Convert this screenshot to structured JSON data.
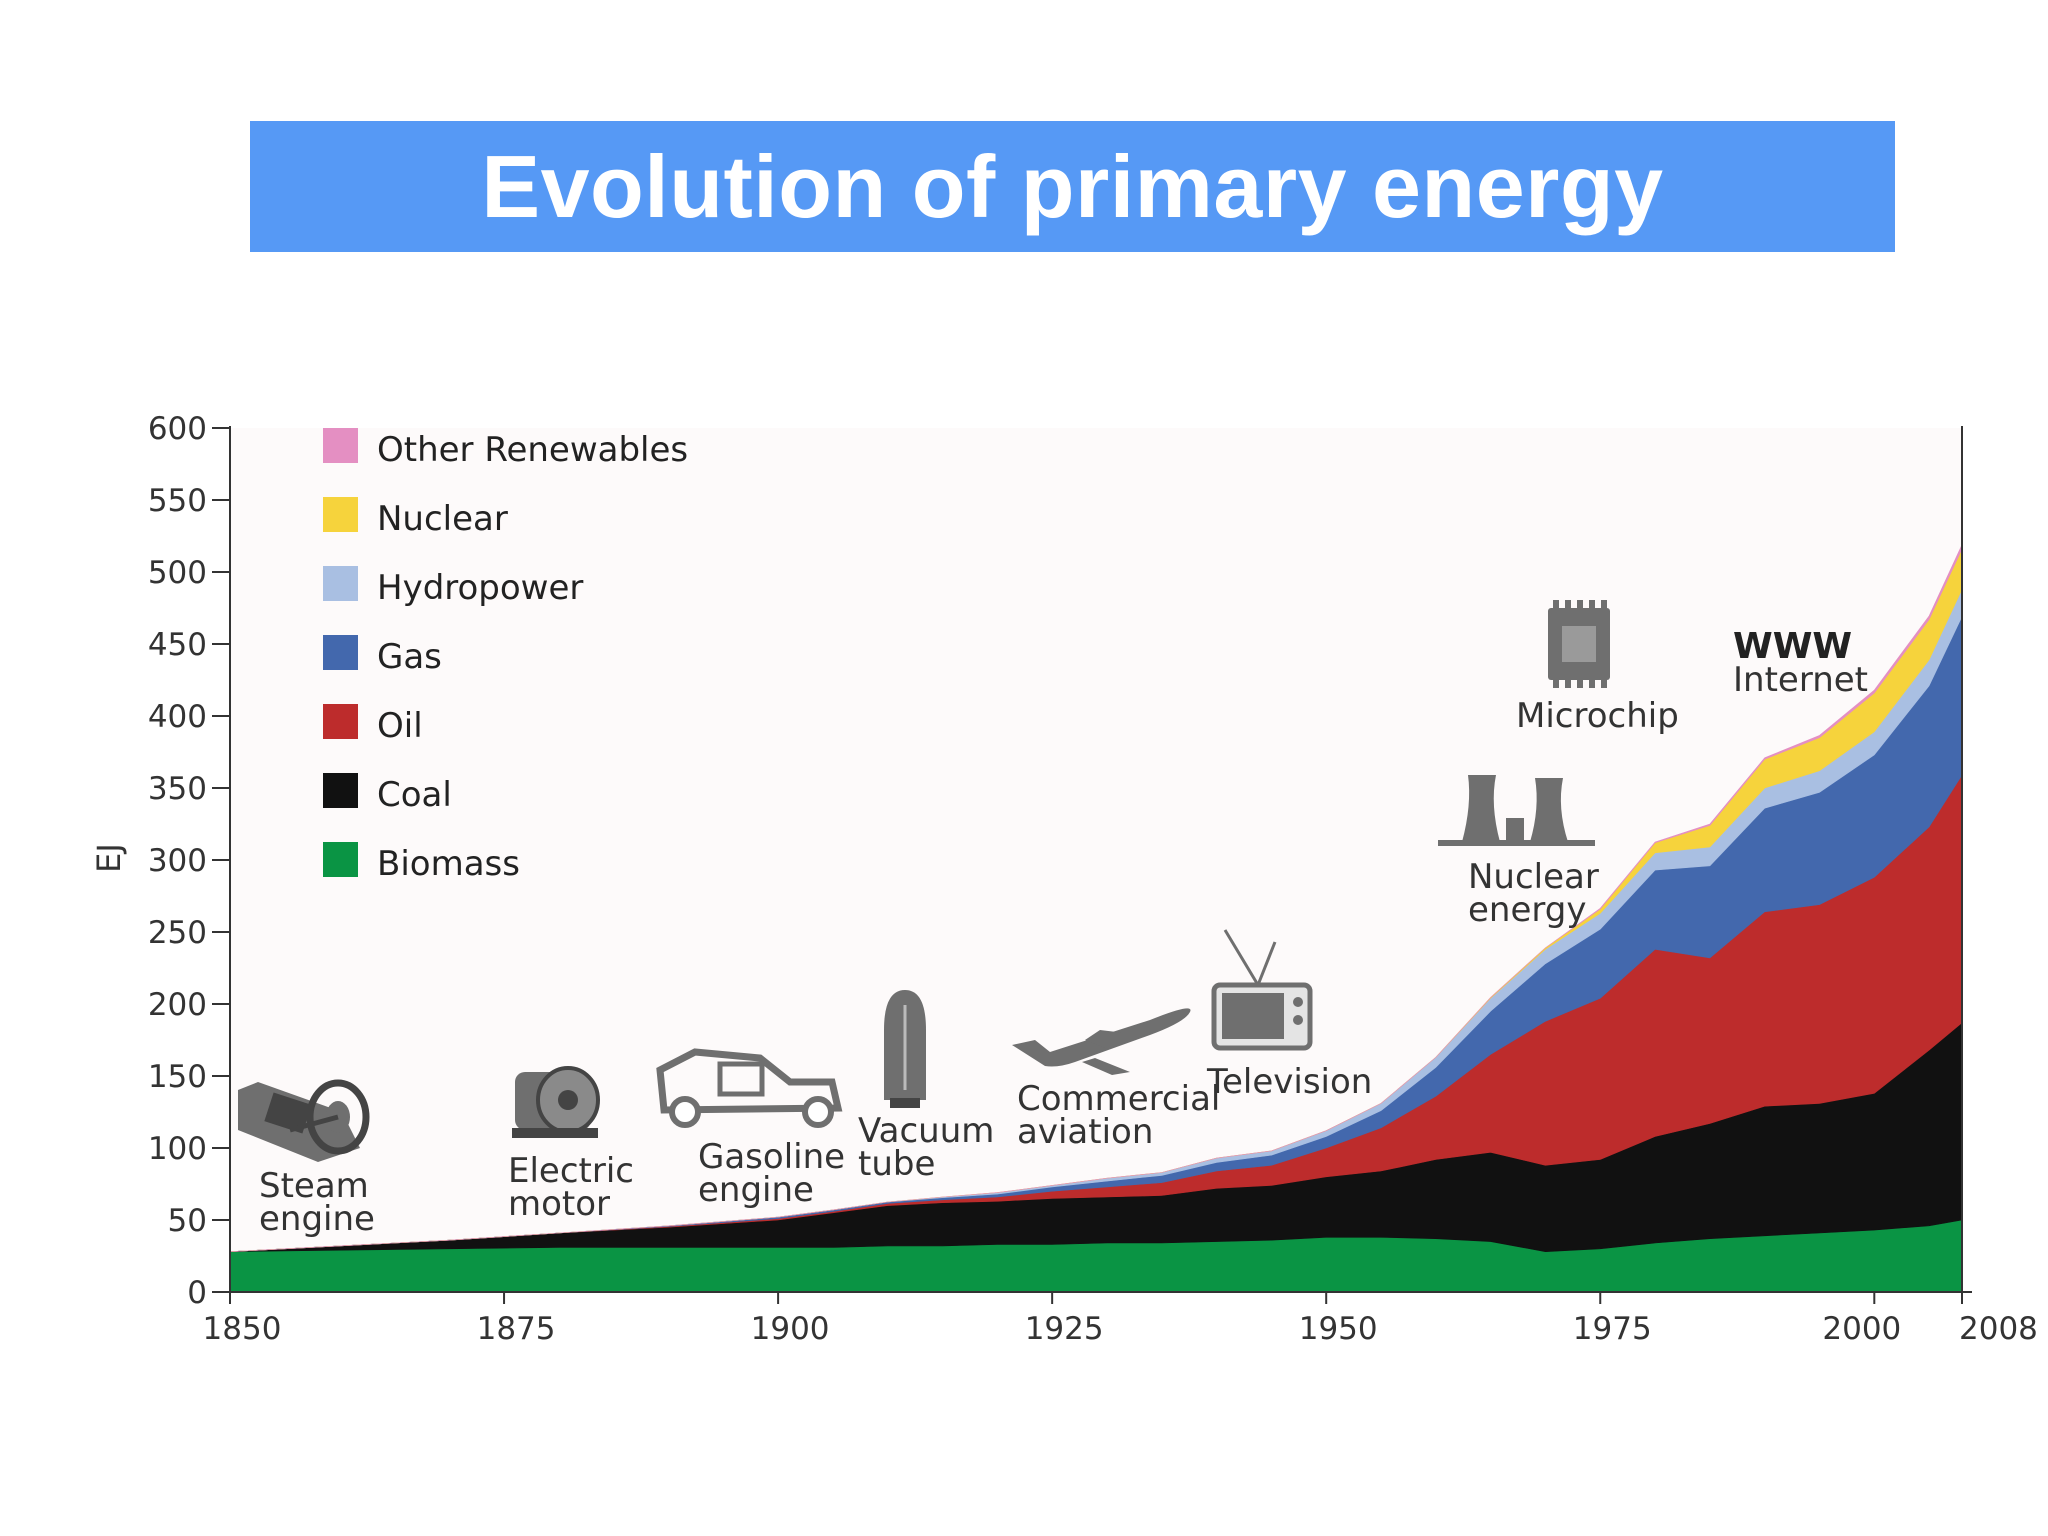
{
  "title": "Evolution of primary energy",
  "chart_data": {
    "type": "area",
    "stacked": true,
    "ylabel": "EJ",
    "xlabel": "",
    "ylim": [
      0,
      600
    ],
    "y_ticks": [
      0,
      50,
      100,
      150,
      200,
      250,
      300,
      350,
      400,
      450,
      500,
      550,
      600
    ],
    "x_ticks": [
      1850,
      1875,
      1900,
      1925,
      1950,
      1975,
      2000,
      2008
    ],
    "xlim": [
      1850,
      2008
    ],
    "legend_position": "top-left",
    "x": [
      1850,
      1860,
      1870,
      1880,
      1890,
      1900,
      1905,
      1910,
      1915,
      1920,
      1925,
      1930,
      1935,
      1940,
      1945,
      1950,
      1955,
      1960,
      1965,
      1970,
      1975,
      1980,
      1985,
      1990,
      1995,
      2000,
      2005,
      2008
    ],
    "series": [
      {
        "name": "Biomass",
        "color": "#0a9444",
        "values": [
          28,
          29,
          30,
          31,
          31,
          31,
          31,
          32,
          32,
          33,
          33,
          34,
          34,
          35,
          36,
          38,
          38,
          37,
          35,
          28,
          30,
          34,
          37,
          39,
          41,
          43,
          46,
          50
        ]
      },
      {
        "name": "Coal",
        "color": "#111111",
        "values": [
          0,
          3,
          6,
          10,
          14,
          19,
          24,
          28,
          30,
          30,
          32,
          32,
          33,
          37,
          38,
          42,
          46,
          55,
          62,
          60,
          62,
          74,
          80,
          90,
          90,
          95,
          122,
          137
        ]
      },
      {
        "name": "Oil",
        "color": "#bd2c2c",
        "values": [
          0,
          0,
          0,
          0,
          0.5,
          1,
          1,
          1.5,
          2,
          3,
          5,
          7,
          9,
          12,
          14,
          20,
          30,
          44,
          68,
          100,
          112,
          130,
          115,
          135,
          138,
          150,
          155,
          172
        ]
      },
      {
        "name": "Gas",
        "color": "#4368ad",
        "values": [
          0,
          0,
          0,
          0,
          0.5,
          1,
          1,
          1,
          1.5,
          2,
          3,
          4,
          5,
          6,
          7,
          8,
          12,
          20,
          30,
          40,
          48,
          55,
          64,
          72,
          78,
          85,
          98,
          110
        ]
      },
      {
        "name": "Hydropower",
        "color": "#a9bfe2",
        "values": [
          0,
          0,
          0,
          0,
          0,
          0,
          0,
          0,
          0.5,
          1,
          1,
          2,
          2,
          3,
          3,
          4,
          5,
          7,
          9,
          10,
          11,
          12,
          13,
          14,
          15,
          16,
          18,
          19
        ]
      },
      {
        "name": "Nuclear",
        "color": "#f6d33c",
        "values": [
          0,
          0,
          0,
          0,
          0,
          0,
          0,
          0,
          0,
          0,
          0,
          0,
          0,
          0,
          0,
          0,
          0,
          0,
          0.5,
          1,
          3,
          7,
          15,
          20,
          23,
          27,
          28,
          28
        ]
      },
      {
        "name": "Other Renewables",
        "color": "#e48fc2",
        "values": [
          0,
          0,
          0,
          0,
          0,
          0,
          0,
          0,
          0,
          0,
          0,
          0,
          0,
          0,
          0,
          0,
          0,
          0,
          0,
          0,
          0.5,
          0.5,
          1,
          1,
          1.5,
          2,
          2.5,
          3
        ]
      }
    ],
    "legend_order": [
      "Other Renewables",
      "Nuclear",
      "Hydropower",
      "Gas",
      "Oil",
      "Coal",
      "Biomass"
    ],
    "annotations": [
      {
        "label_lines": [
          "Steam",
          "engine"
        ],
        "icon": "steam-engine-icon"
      },
      {
        "label_lines": [
          "Electric",
          "motor"
        ],
        "icon": "electric-motor-icon"
      },
      {
        "label_lines": [
          "Gasoline",
          "engine"
        ],
        "icon": "car-icon"
      },
      {
        "label_lines": [
          "Vacuum",
          "tube"
        ],
        "icon": "vacuum-tube-icon"
      },
      {
        "label_lines": [
          "Commercial",
          "aviation"
        ],
        "icon": "airplane-icon"
      },
      {
        "label_lines": [
          "Television"
        ],
        "icon": "television-icon"
      },
      {
        "label_lines": [
          "Nuclear",
          "energy"
        ],
        "icon": "cooling-tower-icon"
      },
      {
        "label_lines": [
          "Microchip"
        ],
        "icon": "microchip-icon"
      },
      {
        "label_lines": [
          "WWW",
          "Internet"
        ],
        "icon": "www-icon"
      }
    ]
  }
}
